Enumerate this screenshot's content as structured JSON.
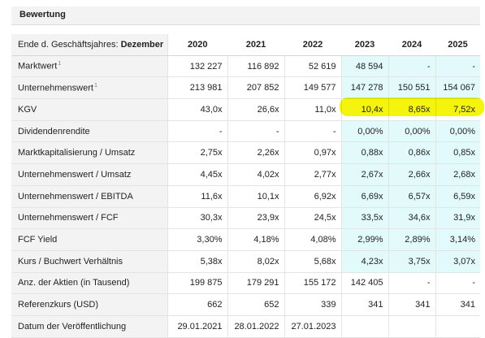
{
  "section_title": "Bewertung",
  "header": {
    "label_prefix": "Ende d. Geschäftsjahres:",
    "label_month": "Dezember",
    "years": [
      "2020",
      "2021",
      "2022",
      "2023",
      "2024",
      "2025"
    ]
  },
  "highlight_color": "#f4f400",
  "estimate_bg_color": "#e3fafc",
  "rows": [
    {
      "label": "Marktwert",
      "footnote": "1",
      "values": [
        "132 227",
        "116 892",
        "52 619",
        "48 594",
        "-",
        "-"
      ]
    },
    {
      "label": "Unternehmenswert",
      "footnote": "1",
      "values": [
        "213 981",
        "207 852",
        "149 577",
        "147 278",
        "150 551",
        "154 067"
      ]
    },
    {
      "label": "KGV",
      "footnote": "",
      "values": [
        "43,0x",
        "26,6x",
        "11,0x",
        "10,4x",
        "8,65x",
        "7,52x"
      ]
    },
    {
      "label": "Dividendenrendite",
      "footnote": "",
      "values": [
        "-",
        "-",
        "-",
        "0,00%",
        "0,00%",
        "0,00%"
      ]
    },
    {
      "label": "Marktkapitalisierung / Umsatz",
      "footnote": "",
      "values": [
        "2,75x",
        "2,26x",
        "0,97x",
        "0,88x",
        "0,86x",
        "0,85x"
      ]
    },
    {
      "label": "Unternehmenswert / Umsatz",
      "footnote": "",
      "values": [
        "4,45x",
        "4,02x",
        "2,77x",
        "2,67x",
        "2,66x",
        "2,68x"
      ]
    },
    {
      "label": "Unternehmenswert / EBITDA",
      "footnote": "",
      "values": [
        "11,6x",
        "10,1x",
        "6,92x",
        "6,69x",
        "6,57x",
        "6,59x"
      ]
    },
    {
      "label": "Unternehmenswert / FCF",
      "footnote": "",
      "values": [
        "30,3x",
        "23,9x",
        "24,5x",
        "33,5x",
        "34,6x",
        "31,9x"
      ]
    },
    {
      "label": "FCF Yield",
      "footnote": "",
      "values": [
        "3,30%",
        "4,18%",
        "4,08%",
        "2,99%",
        "2,89%",
        "3,14%"
      ]
    },
    {
      "label": "Kurs / Buchwert Verhältnis",
      "footnote": "",
      "values": [
        "5,38x",
        "8,02x",
        "5,68x",
        "4,23x",
        "3,75x",
        "3,07x"
      ]
    },
    {
      "label": "Anz. der Aktien (in Tausend)",
      "footnote": "",
      "values": [
        "199 875",
        "179 291",
        "155 172",
        "142 405",
        "-",
        "-"
      ]
    },
    {
      "label": "Referenzkurs (USD)",
      "footnote": "",
      "values": [
        "662",
        "652",
        "339",
        "341",
        "341",
        "341"
      ]
    },
    {
      "label": "Datum der Veröffentlichung",
      "footnote": "",
      "values": [
        "29.01.2021",
        "28.01.2022",
        "27.01.2023",
        "",
        "",
        ""
      ]
    }
  ]
}
